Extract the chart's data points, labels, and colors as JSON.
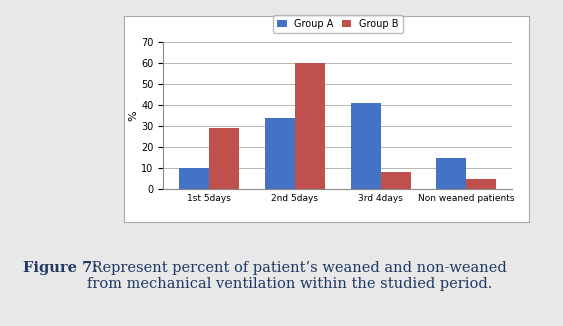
{
  "categories": [
    "1st 5days",
    "2nd 5days",
    "3rd 4days",
    "Non weaned patients"
  ],
  "group_a": [
    10,
    34,
    41,
    15
  ],
  "group_b": [
    29,
    60,
    8,
    5
  ],
  "group_a_color": "#4472C4",
  "group_b_color": "#C0504D",
  "group_a_label": "Group A",
  "group_b_label": "Group B",
  "ylabel": "%",
  "ylim": [
    0,
    70
  ],
  "yticks": [
    0,
    10,
    20,
    30,
    40,
    50,
    60,
    70
  ],
  "bar_width": 0.35,
  "figsize": [
    5.63,
    3.26
  ],
  "dpi": 100,
  "outer_bg": "#E8E8E8",
  "chart_bg": "#FFFFFF",
  "caption_bold": "Figure 7:",
  "caption_rest": " Represent percent of patient’s weaned and non-weaned\nfrom mechanical ventilation within the studied period.",
  "caption_color": "#1F3864",
  "caption_fontsize": 10.5
}
